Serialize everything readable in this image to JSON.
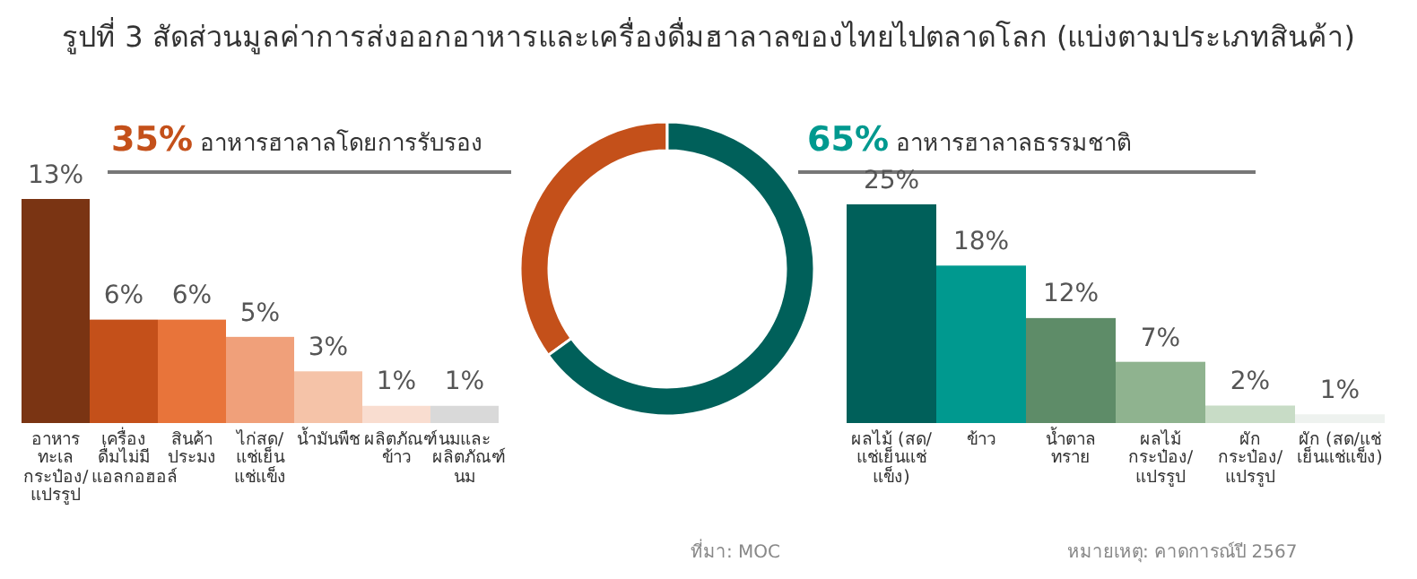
{
  "chart_data": [
    {
      "type": "bar",
      "title": "รูปที่ 3 สัดส่วนมูลค่าการส่งออกอาหารและเครื่องดื่มฮาลาลของไทยไปตลาดโลก (แบ่งตามประเภทสินค้า)",
      "subtitle": "35% อาหารฮาลาลโดยการรับรอง",
      "categories": [
        "อาหารทะเลกระป๋อง/แปรรูป",
        "เครื่องดื่มไม่มีแอลกอฮอล์",
        "สินค้าประมง",
        "ไก่สด/แช่เย็นแช่แข็ง",
        "น้ำมันพืช",
        "ผลิตภัณฑ์ข้าว",
        "นมและผลิตภัณฑ์นม"
      ],
      "values": [
        13,
        6,
        6,
        5,
        3,
        1,
        1
      ],
      "colors": [
        "#7a3413",
        "#c4501a",
        "#e8743a",
        "#f0a07a",
        "#f5c3a8",
        "#f9ddd0",
        "#d9d9d9"
      ],
      "value_labels": [
        "13%",
        "6%",
        "6%",
        "5%",
        "3%",
        "1%",
        "1%"
      ]
    },
    {
      "type": "donut",
      "categories": [
        null,
        null
      ],
      "values": [
        35,
        65
      ],
      "colors": [
        "#c4501a",
        "#00605a"
      ]
    },
    {
      "type": "bar",
      "title": "65% อาหารฮาลาลธรรมชาติ",
      "categories": [
        "ผลไม้ (สด/แช่เย็นแช่แข็ง)",
        "ข้าว",
        "น้ำตาลทราย",
        "ผลไม้กระป๋อง/แปรรูป",
        "ผักกระป๋อง/แปรรูป",
        "ผัก (สด/แช่เย็นแช่แข็ง)"
      ],
      "values": [
        25,
        18,
        12,
        7,
        2,
        1
      ],
      "colors": [
        "#00605a",
        "#00998f",
        "#5e8c68",
        "#8fb38f",
        "#c8dcc6",
        "#eef2ef"
      ],
      "value_labels": [
        "25%",
        "18%",
        "12%",
        "7%",
        "2%",
        "1%"
      ],
      "annotations": [
        "ที่มา: MOC",
        "หมายเหตุ: คาดการณ์ปี 2567"
      ]
    }
  ]
}
